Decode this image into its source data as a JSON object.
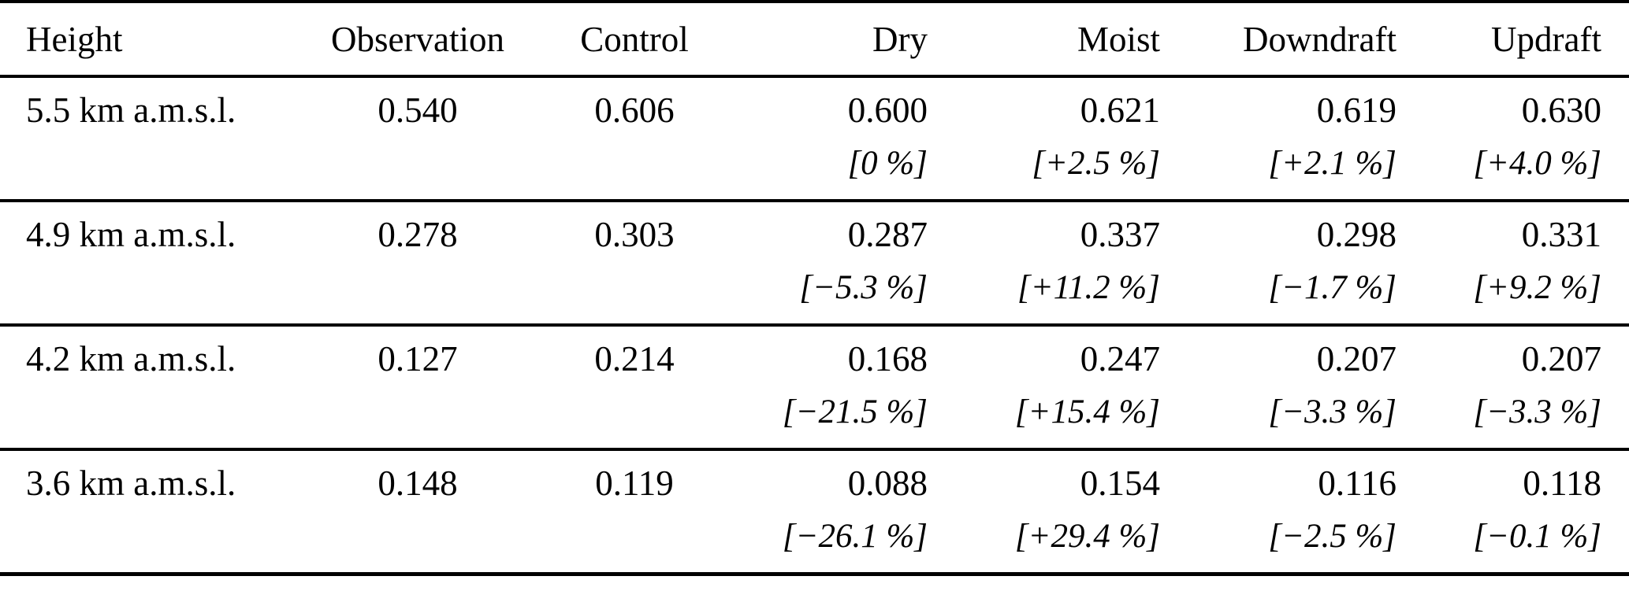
{
  "table": {
    "columns": [
      {
        "label": "Height",
        "align": "left"
      },
      {
        "label": "Observation",
        "align": "center"
      },
      {
        "label": "Control",
        "align": "center"
      },
      {
        "label": "Dry",
        "align": "right"
      },
      {
        "label": "Moist",
        "align": "right"
      },
      {
        "label": "Downdraft",
        "align": "right"
      },
      {
        "label": "Updraft",
        "align": "right"
      }
    ],
    "rows": [
      {
        "height": "5.5 km a.m.s.l.",
        "observation": "0.540",
        "control": "0.606",
        "dry": {
          "value": "0.600",
          "change": "[0 %]"
        },
        "moist": {
          "value": "0.621",
          "change": "[+2.5 %]"
        },
        "downdraft": {
          "value": "0.619",
          "change": "[+2.1 %]"
        },
        "updraft": {
          "value": "0.630",
          "change": "[+4.0 %]"
        }
      },
      {
        "height": "4.9 km a.m.s.l.",
        "observation": "0.278",
        "control": "0.303",
        "dry": {
          "value": "0.287",
          "change": "[−5.3 %]"
        },
        "moist": {
          "value": "0.337",
          "change": "[+11.2 %]"
        },
        "downdraft": {
          "value": "0.298",
          "change": "[−1.7 %]"
        },
        "updraft": {
          "value": "0.331",
          "change": "[+9.2 %]"
        }
      },
      {
        "height": "4.2 km a.m.s.l.",
        "observation": "0.127",
        "control": "0.214",
        "dry": {
          "value": "0.168",
          "change": "[−21.5 %]"
        },
        "moist": {
          "value": "0.247",
          "change": "[+15.4 %]"
        },
        "downdraft": {
          "value": "0.207",
          "change": "[−3.3 %]"
        },
        "updraft": {
          "value": "0.207",
          "change": "[−3.3 %]"
        }
      },
      {
        "height": "3.6 km a.m.s.l.",
        "observation": "0.148",
        "control": "0.119",
        "dry": {
          "value": "0.088",
          "change": "[−26.1 %]"
        },
        "moist": {
          "value": "0.154",
          "change": "[+29.4 %]"
        },
        "downdraft": {
          "value": "0.116",
          "change": "[−2.5 %]"
        },
        "updraft": {
          "value": "0.118",
          "change": "[−0.1 %]"
        }
      }
    ]
  },
  "colors": {
    "text": "#000000",
    "background": "#ffffff",
    "rule": "#000000"
  }
}
